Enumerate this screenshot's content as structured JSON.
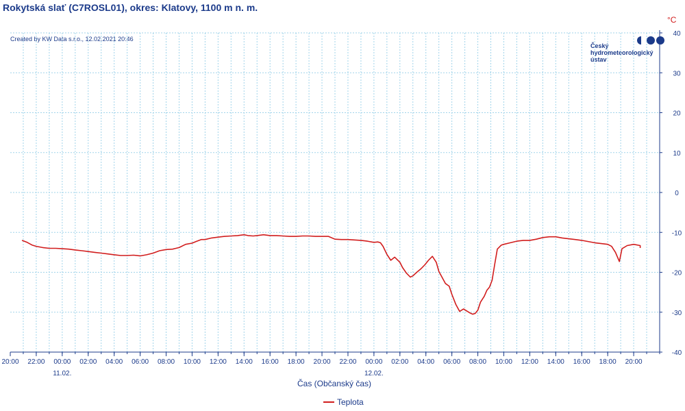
{
  "header": {
    "title": "Rokytská slať (C7ROSL01), okres: Klatovy, 1100 m n. m.",
    "unit": "°C",
    "created": "Created by KW Data s.r.o., 12.02.2021 20:46"
  },
  "logo": {
    "line1": "Český",
    "line2": "hydrometeorologický",
    "line3": "ústav"
  },
  "chart_data": {
    "type": "line",
    "title": "Rokytská slať (C7ROSL01), okres: Klatovy, 1100 m n. m.",
    "xlabel": "Čas (Občanský čas)",
    "ylabel": "°C",
    "ylim": [
      -40,
      40
    ],
    "yticks": [
      -40,
      -30,
      -20,
      -10,
      0,
      10,
      20,
      30,
      40
    ],
    "xlim": [
      20,
      70
    ],
    "xticks": [
      {
        "x": 20,
        "label": "20:00"
      },
      {
        "x": 22,
        "label": "22:00"
      },
      {
        "x": 24,
        "label": "00:00"
      },
      {
        "x": 26,
        "label": "02:00"
      },
      {
        "x": 28,
        "label": "04:00"
      },
      {
        "x": 30,
        "label": "06:00"
      },
      {
        "x": 32,
        "label": "08:00"
      },
      {
        "x": 34,
        "label": "10:00"
      },
      {
        "x": 36,
        "label": "12:00"
      },
      {
        "x": 38,
        "label": "14:00"
      },
      {
        "x": 40,
        "label": "16:00"
      },
      {
        "x": 42,
        "label": "18:00"
      },
      {
        "x": 44,
        "label": "20:00"
      },
      {
        "x": 46,
        "label": "22:00"
      },
      {
        "x": 48,
        "label": "00:00"
      },
      {
        "x": 50,
        "label": "02:00"
      },
      {
        "x": 52,
        "label": "04:00"
      },
      {
        "x": 54,
        "label": "06:00"
      },
      {
        "x": 56,
        "label": "08:00"
      },
      {
        "x": 58,
        "label": "10:00"
      },
      {
        "x": 60,
        "label": "12:00"
      },
      {
        "x": 62,
        "label": "14:00"
      },
      {
        "x": 64,
        "label": "16:00"
      },
      {
        "x": 66,
        "label": "18:00"
      },
      {
        "x": 68,
        "label": "20:00"
      }
    ],
    "date_labels": [
      {
        "x": 24,
        "label": "11.02."
      },
      {
        "x": 48,
        "label": "12.02."
      }
    ],
    "grid": true,
    "legend": "bottom-center",
    "series": [
      {
        "name": "Teplota",
        "color": "#d11c1c",
        "x": [
          20.9,
          21.3,
          21.7,
          22.0,
          22.5,
          23.0,
          23.5,
          24.0,
          24.5,
          25.0,
          25.5,
          26.0,
          26.5,
          27.0,
          27.5,
          28.0,
          28.5,
          29.0,
          29.5,
          30.0,
          30.5,
          31.0,
          31.5,
          32.0,
          32.5,
          33.0,
          33.5,
          34.0,
          34.3,
          34.7,
          35.0,
          35.5,
          36.0,
          36.5,
          37.0,
          37.5,
          38.0,
          38.3,
          38.7,
          39.0,
          39.5,
          40.0,
          40.5,
          41.0,
          41.5,
          42.0,
          42.5,
          43.0,
          43.5,
          44.0,
          44.5,
          45.0,
          45.5,
          46.0,
          46.5,
          47.0,
          47.5,
          48.0,
          48.3,
          48.5,
          48.7,
          49.0,
          49.3,
          49.6,
          50.0,
          50.2,
          50.5,
          50.8,
          51.0,
          51.3,
          51.6,
          51.9,
          52.0,
          52.2,
          52.5,
          52.8,
          53.0,
          53.2,
          53.5,
          53.8,
          54.0,
          54.3,
          54.6,
          54.9,
          55.2,
          55.4,
          55.6,
          55.8,
          56.0,
          56.2,
          56.5,
          56.7,
          56.9,
          57.1,
          57.3,
          57.5,
          57.8,
          58.0,
          58.5,
          59.0,
          59.5,
          60.0,
          60.5,
          61.0,
          61.5,
          62.0,
          62.5,
          63.0,
          63.5,
          64.0,
          64.5,
          65.0,
          65.5,
          66.0,
          66.3,
          66.6,
          66.9,
          67.1,
          67.5,
          68.0,
          68.5,
          68.5
        ],
        "values": [
          -12.0,
          -12.5,
          -13.2,
          -13.5,
          -13.8,
          -14.0,
          -14.0,
          -14.1,
          -14.2,
          -14.4,
          -14.6,
          -14.8,
          -15.0,
          -15.2,
          -15.4,
          -15.6,
          -15.8,
          -15.8,
          -15.7,
          -15.9,
          -15.6,
          -15.2,
          -14.6,
          -14.3,
          -14.2,
          -13.8,
          -13.0,
          -12.7,
          -12.3,
          -11.8,
          -11.8,
          -11.4,
          -11.2,
          -11.0,
          -10.9,
          -10.8,
          -10.6,
          -10.8,
          -10.9,
          -10.8,
          -10.6,
          -10.8,
          -10.8,
          -10.9,
          -11.0,
          -11.0,
          -10.9,
          -10.9,
          -11.0,
          -11.0,
          -11.0,
          -11.7,
          -11.8,
          -11.8,
          -11.9,
          -12.0,
          -12.2,
          -12.5,
          -12.4,
          -12.6,
          -13.5,
          -15.5,
          -17.0,
          -16.2,
          -17.5,
          -18.8,
          -20.2,
          -21.2,
          -20.9,
          -20.0,
          -19.2,
          -18.2,
          -17.8,
          -17.0,
          -16.0,
          -17.5,
          -19.8,
          -21.0,
          -22.8,
          -23.5,
          -25.5,
          -28.0,
          -29.8,
          -29.2,
          -29.8,
          -30.2,
          -30.5,
          -30.3,
          -29.5,
          -27.5,
          -26.0,
          -24.5,
          -23.7,
          -22.0,
          -18.0,
          -14.2,
          -13.2,
          -13.0,
          -12.6,
          -12.2,
          -12.0,
          -12.0,
          -11.7,
          -11.3,
          -11.1,
          -11.1,
          -11.4,
          -11.6,
          -11.8,
          -12.0,
          -12.3,
          -12.6,
          -12.8,
          -13.0,
          -13.5,
          -15.0,
          -17.3,
          -14.1,
          -13.3,
          -13.0,
          -13.3,
          -13.9
        ]
      }
    ]
  }
}
